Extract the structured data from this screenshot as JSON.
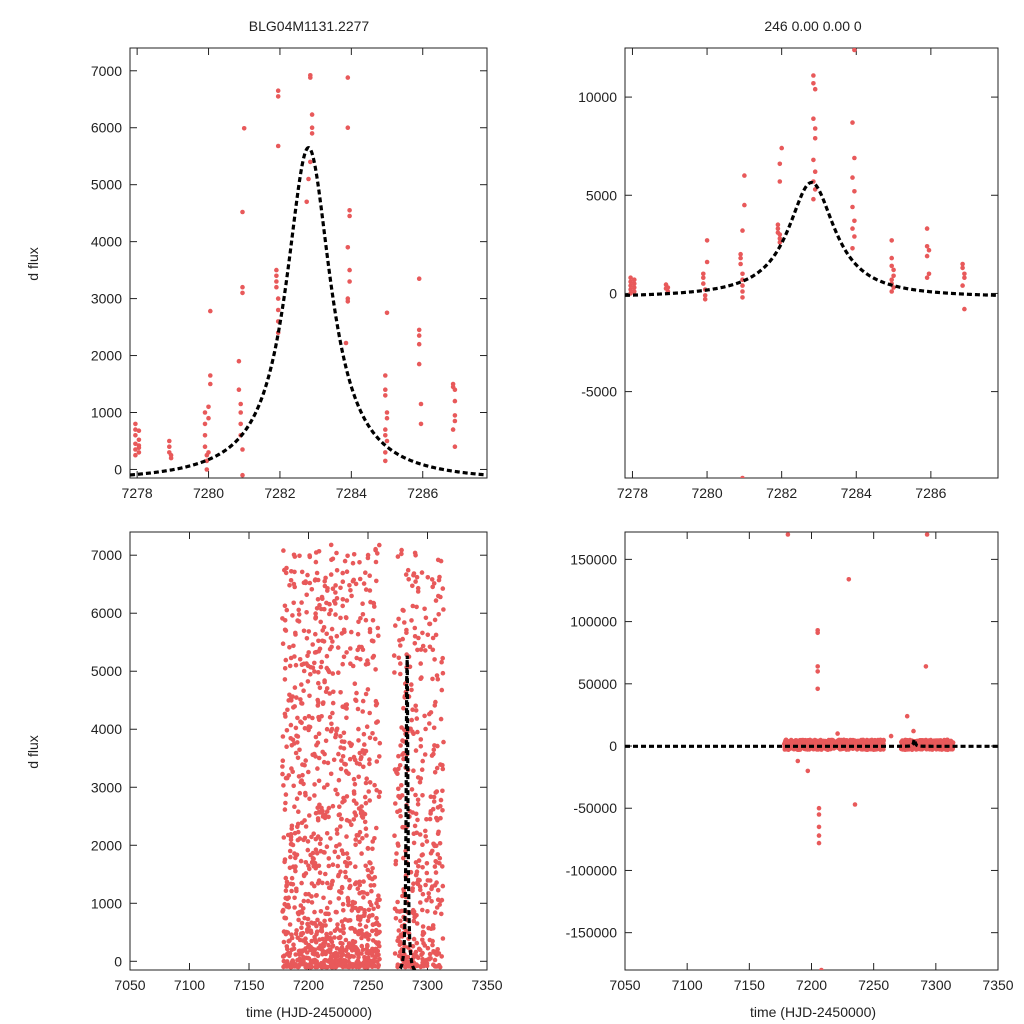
{
  "figure": {
    "ylabel": "d flux",
    "xlabel": "time (HJD-2450000)"
  },
  "chart_data": [
    {
      "id": "tl",
      "type": "scatter",
      "title": "BLG04M1131.2277",
      "xlabel": "",
      "ylabel": "d flux",
      "xlim": [
        7277.8,
        7287.8
      ],
      "ylim": [
        -150,
        7400
      ],
      "xticks": [
        7278,
        7280,
        7282,
        7284,
        7286
      ],
      "yticks": [
        0,
        1000,
        2000,
        3000,
        4000,
        5000,
        6000,
        7000
      ],
      "series": [
        {
          "name": "data",
          "color": "#e8595a",
          "points": [
            [
              7277.95,
              800
            ],
            [
              7277.95,
              700
            ],
            [
              7277.95,
              600
            ],
            [
              7277.95,
              450
            ],
            [
              7277.95,
              350
            ],
            [
              7277.95,
              250
            ],
            [
              7278.05,
              680
            ],
            [
              7278.05,
              520
            ],
            [
              7278.05,
              420
            ],
            [
              7278.05,
              380
            ],
            [
              7278.05,
              300
            ],
            [
              7278.9,
              500
            ],
            [
              7278.9,
              400
            ],
            [
              7278.9,
              300
            ],
            [
              7278.95,
              250
            ],
            [
              7278.95,
              200
            ],
            [
              7279.9,
              1000
            ],
            [
              7279.9,
              800
            ],
            [
              7279.9,
              600
            ],
            [
              7279.9,
              400
            ],
            [
              7279.95,
              250
            ],
            [
              7279.95,
              150
            ],
            [
              7279.95,
              0
            ],
            [
              7280.0,
              1100
            ],
            [
              7280.0,
              900
            ],
            [
              7280.0,
              300
            ],
            [
              7280.05,
              2780
            ],
            [
              7280.05,
              1650
            ],
            [
              7280.05,
              1500
            ],
            [
              7280.85,
              1900
            ],
            [
              7280.85,
              1400
            ],
            [
              7280.9,
              1150
            ],
            [
              7280.9,
              1000
            ],
            [
              7280.9,
              800
            ],
            [
              7280.9,
              600
            ],
            [
              7280.95,
              350
            ],
            [
              7280.95,
              -100
            ],
            [
              7280.95,
              3200
            ],
            [
              7280.95,
              3100
            ],
            [
              7280.95,
              4520
            ],
            [
              7281.0,
              5990
            ],
            [
              7281.9,
              3500
            ],
            [
              7281.9,
              3400
            ],
            [
              7281.9,
              3300
            ],
            [
              7281.9,
              3200
            ],
            [
              7281.95,
              3000
            ],
            [
              7281.95,
              2800
            ],
            [
              7281.95,
              2600
            ],
            [
              7281.95,
              2400
            ],
            [
              7281.95,
              6650
            ],
            [
              7281.95,
              6550
            ],
            [
              7281.95,
              5680
            ],
            [
              7282.85,
              6920
            ],
            [
              7282.85,
              6880
            ],
            [
              7282.9,
              6230
            ],
            [
              7282.9,
              6000
            ],
            [
              7282.9,
              5900
            ],
            [
              7282.85,
              5400
            ],
            [
              7282.8,
              5100
            ],
            [
              7282.75,
              4700
            ],
            [
              7283.9,
              6880
            ],
            [
              7283.9,
              6000
            ],
            [
              7283.95,
              4550
            ],
            [
              7283.95,
              4450
            ],
            [
              7283.9,
              3900
            ],
            [
              7283.95,
              3500
            ],
            [
              7283.95,
              3300
            ],
            [
              7283.9,
              3000
            ],
            [
              7283.9,
              2950
            ],
            [
              7283.85,
              2220
            ],
            [
              7284.95,
              1650
            ],
            [
              7284.95,
              1400
            ],
            [
              7284.95,
              1300
            ],
            [
              7285.0,
              1000
            ],
            [
              7285.0,
              900
            ],
            [
              7284.95,
              700
            ],
            [
              7284.95,
              600
            ],
            [
              7285.0,
              500
            ],
            [
              7284.95,
              300
            ],
            [
              7284.95,
              150
            ],
            [
              7285.0,
              2750
            ],
            [
              7285.9,
              3350
            ],
            [
              7285.9,
              2450
            ],
            [
              7285.9,
              2350
            ],
            [
              7285.9,
              2200
            ],
            [
              7285.9,
              1850
            ],
            [
              7285.95,
              1150
            ],
            [
              7285.95,
              800
            ],
            [
              7286.85,
              1500
            ],
            [
              7286.85,
              1450
            ],
            [
              7286.9,
              1400
            ],
            [
              7286.9,
              1200
            ],
            [
              7286.9,
              950
            ],
            [
              7286.9,
              850
            ],
            [
              7286.85,
              700
            ],
            [
              7286.9,
              400
            ]
          ]
        },
        {
          "name": "model",
          "style": "dashed",
          "color": "#000000",
          "t0": 7282.8,
          "peak": 5650,
          "tE": 0.76,
          "baseline": -230
        }
      ]
    },
    {
      "id": "tr",
      "type": "scatter",
      "title": "246  0.00  0.00  0",
      "xlabel": "",
      "ylabel": "",
      "xlim": [
        7277.8,
        7287.8
      ],
      "ylim": [
        -9400,
        12500
      ],
      "xticks": [
        7278,
        7280,
        7282,
        7284,
        7286
      ],
      "yticks": [
        -5000,
        0,
        5000,
        10000
      ],
      "series": [
        {
          "name": "data",
          "color": "#e8595a",
          "points": [
            [
              7277.95,
              800
            ],
            [
              7277.95,
              600
            ],
            [
              7277.95,
              400
            ],
            [
              7277.95,
              200
            ],
            [
              7277.95,
              0
            ],
            [
              7278.05,
              700
            ],
            [
              7278.05,
              500
            ],
            [
              7278.05,
              300
            ],
            [
              7278.05,
              100
            ],
            [
              7278.9,
              450
            ],
            [
              7278.9,
              250
            ],
            [
              7278.95,
              100
            ],
            [
              7278.95,
              300
            ],
            [
              7279.9,
              1000
            ],
            [
              7279.9,
              800
            ],
            [
              7279.9,
              500
            ],
            [
              7279.95,
              200
            ],
            [
              7279.95,
              -100
            ],
            [
              7279.95,
              -300
            ],
            [
              7280.0,
              1600
            ],
            [
              7280.0,
              2700
            ],
            [
              7280.9,
              2000
            ],
            [
              7280.9,
              1800
            ],
            [
              7280.9,
              1500
            ],
            [
              7280.95,
              1000
            ],
            [
              7280.95,
              700
            ],
            [
              7280.95,
              400
            ],
            [
              7280.95,
              100
            ],
            [
              7280.95,
              -200
            ],
            [
              7280.95,
              3200
            ],
            [
              7281.0,
              4500
            ],
            [
              7281.0,
              6000
            ],
            [
              7280.95,
              -9400
            ],
            [
              7281.9,
              3500
            ],
            [
              7281.9,
              3300
            ],
            [
              7281.9,
              3100
            ],
            [
              7281.95,
              3000
            ],
            [
              7281.95,
              2800
            ],
            [
              7281.95,
              2600
            ],
            [
              7281.95,
              5700
            ],
            [
              7281.95,
              6600
            ],
            [
              7282.0,
              7400
            ],
            [
              7282.85,
              11100
            ],
            [
              7282.85,
              10700
            ],
            [
              7282.9,
              10400
            ],
            [
              7282.85,
              8900
            ],
            [
              7282.9,
              8400
            ],
            [
              7282.9,
              7900
            ],
            [
              7282.85,
              6800
            ],
            [
              7282.9,
              6200
            ],
            [
              7282.85,
              5700
            ],
            [
              7282.9,
              5300
            ],
            [
              7282.85,
              4800
            ],
            [
              7283.95,
              12400
            ],
            [
              7283.9,
              8700
            ],
            [
              7283.95,
              6900
            ],
            [
              7283.9,
              5900
            ],
            [
              7283.95,
              5200
            ],
            [
              7283.9,
              4400
            ],
            [
              7283.95,
              3700
            ],
            [
              7283.9,
              3300
            ],
            [
              7283.95,
              2900
            ],
            [
              7283.9,
              2300
            ],
            [
              7284.95,
              2700
            ],
            [
              7284.95,
              1800
            ],
            [
              7284.95,
              1400
            ],
            [
              7285.0,
              1200
            ],
            [
              7285.0,
              900
            ],
            [
              7284.95,
              700
            ],
            [
              7284.95,
              500
            ],
            [
              7285.0,
              300
            ],
            [
              7284.95,
              100
            ],
            [
              7285.9,
              3300
            ],
            [
              7285.9,
              2400
            ],
            [
              7285.95,
              2200
            ],
            [
              7285.9,
              1900
            ],
            [
              7285.95,
              1000
            ],
            [
              7285.9,
              800
            ],
            [
              7286.85,
              1500
            ],
            [
              7286.85,
              1300
            ],
            [
              7286.9,
              1000
            ],
            [
              7286.9,
              800
            ],
            [
              7286.85,
              400
            ],
            [
              7286.9,
              -800
            ]
          ]
        },
        {
          "name": "model",
          "style": "dashed",
          "color": "#000000",
          "t0": 7282.8,
          "peak": 5650,
          "tE": 0.76,
          "baseline": -230
        }
      ]
    },
    {
      "id": "bl",
      "type": "scatter",
      "title": "",
      "xlabel": "time (HJD-2450000)",
      "ylabel": "d flux",
      "xlim": [
        7050,
        7350
      ],
      "ylim": [
        -150,
        7400
      ],
      "xticks": [
        7050,
        7100,
        7150,
        7200,
        7250,
        7300,
        7350
      ],
      "yticks": [
        0,
        1000,
        2000,
        3000,
        4000,
        5000,
        6000,
        7000
      ],
      "series": [
        {
          "name": "data",
          "color": "#e8595a",
          "generator": "dense-scatter",
          "segments": [
            [
              7178,
              7260
            ],
            [
              7272,
              7314
            ]
          ],
          "count": 1500,
          "seed": 1131,
          "peak_in_view": 7200
        },
        {
          "name": "model",
          "style": "dashed",
          "color": "#000000",
          "t0": 7282.8,
          "peak": 5650,
          "tE": 0.76,
          "baseline": -230
        }
      ]
    },
    {
      "id": "br",
      "type": "scatter",
      "title": "",
      "xlabel": "time (HJD-2450000)",
      "ylabel": "",
      "xlim": [
        7050,
        7350
      ],
      "ylim": [
        -180000,
        172000
      ],
      "xticks": [
        7050,
        7100,
        7150,
        7200,
        7250,
        7300,
        7350
      ],
      "yticks": [
        -150000,
        -100000,
        -50000,
        0,
        50000,
        100000,
        150000
      ],
      "series": [
        {
          "name": "data",
          "color": "#e8595a",
          "generator": "band-scatter",
          "segments": [
            [
              7178,
              7258
            ],
            [
              7272,
              7314
            ]
          ],
          "band": [
            -3000,
            5000
          ],
          "count": 900,
          "seed": 2277,
          "outliers": [
            [
              7181,
              170000
            ],
            [
              7205,
              93000
            ],
            [
              7205,
              91000
            ],
            [
              7205,
              64000
            ],
            [
              7205,
              60000
            ],
            [
              7205,
              46000
            ],
            [
              7206,
              -50000
            ],
            [
              7206,
              -55000
            ],
            [
              7206,
              -65000
            ],
            [
              7206,
              -72000
            ],
            [
              7206,
              -78000
            ],
            [
              7208,
              -180000
            ],
            [
              7230,
              134000
            ],
            [
              7235,
              -47000
            ],
            [
              7292,
              64000
            ],
            [
              7293,
              170000
            ],
            [
              7277,
              24000
            ],
            [
              7282,
              12000
            ],
            [
              7189,
              -12000
            ],
            [
              7197,
              -20000
            ],
            [
              7221,
              10000
            ],
            [
              7264,
              8000
            ]
          ]
        },
        {
          "name": "model",
          "style": "dashed",
          "color": "#000000",
          "t0": 7282.8,
          "peak": 5650,
          "tE": 0.76,
          "baseline": -230
        }
      ]
    }
  ]
}
